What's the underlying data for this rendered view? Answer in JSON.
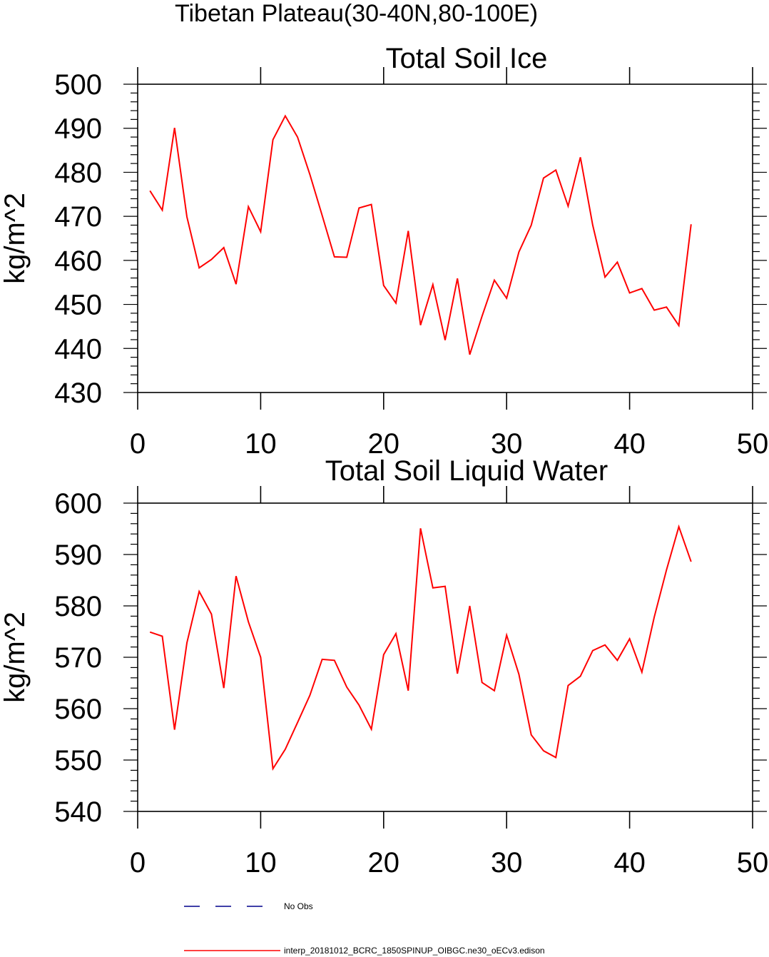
{
  "suptitle": "Tibetan Plateau(30-40N,80-100E)",
  "colors": {
    "series": "#ff0000",
    "obs": "#00008b",
    "axis": "#000000"
  },
  "chart_data": [
    {
      "type": "line",
      "title": "Total Soil Ice",
      "xlabel": "",
      "ylabel": "kg/m^2",
      "xlim": [
        0,
        50
      ],
      "ylim": [
        430,
        500
      ],
      "xticks": [
        0,
        10,
        20,
        30,
        40,
        50
      ],
      "yticks": [
        430,
        440,
        450,
        460,
        470,
        480,
        490,
        500
      ],
      "series": [
        {
          "name": "interp_20181012_BCRC_1850SPINUP_OIBGC.ne30_oECv3.edison",
          "x": [
            1,
            2,
            3,
            4,
            5,
            6,
            7,
            8,
            9,
            10,
            11,
            12,
            13,
            14,
            15,
            16,
            17,
            18,
            19,
            20,
            21,
            22,
            23,
            24,
            25,
            26,
            27,
            28,
            29,
            30,
            31,
            32,
            33,
            34,
            35,
            36,
            37,
            38,
            39,
            40,
            41,
            42,
            43,
            44,
            45
          ],
          "values": [
            475.8,
            471.4,
            490.1,
            469.9,
            458.3,
            460.2,
            462.9,
            454.6,
            472.2,
            466.5,
            487.4,
            492.8,
            488.0,
            479.5,
            470.2,
            460.8,
            460.7,
            471.9,
            472.7,
            454.3,
            450.3,
            466.7,
            445.3,
            454.5,
            441.9,
            455.9,
            438.6,
            447.3,
            455.5,
            451.4,
            461.9,
            468.0,
            478.7,
            480.5,
            472.3,
            483.4,
            468.0,
            456.2,
            459.6,
            452.6,
            453.6,
            448.7,
            449.4,
            445.2,
            468.2
          ]
        }
      ]
    },
    {
      "type": "line",
      "title": "Total Soil Liquid Water",
      "xlabel": "",
      "ylabel": "kg/m^2",
      "xlim": [
        0,
        50
      ],
      "ylim": [
        540,
        600
      ],
      "xticks": [
        0,
        10,
        20,
        30,
        40,
        50
      ],
      "yticks": [
        540,
        550,
        560,
        570,
        580,
        590,
        600
      ],
      "series": [
        {
          "name": "interp_20181012_BCRC_1850SPINUP_OIBGC.ne30_oECv3.edison",
          "x": [
            1,
            2,
            3,
            4,
            5,
            6,
            7,
            8,
            9,
            10,
            11,
            12,
            13,
            14,
            15,
            16,
            17,
            18,
            19,
            20,
            21,
            22,
            23,
            24,
            25,
            26,
            27,
            28,
            29,
            30,
            31,
            32,
            33,
            34,
            35,
            36,
            37,
            38,
            39,
            40,
            41,
            42,
            43,
            44,
            45
          ],
          "values": [
            574.9,
            574.1,
            555.9,
            572.8,
            582.8,
            578.4,
            564.0,
            585.8,
            576.9,
            570.0,
            548.3,
            552.1,
            557.3,
            562.6,
            569.6,
            569.4,
            564.2,
            560.7,
            556.0,
            570.5,
            574.6,
            563.5,
            595.1,
            583.5,
            583.8,
            566.8,
            580.0,
            565.1,
            563.5,
            574.3,
            566.7,
            554.9,
            551.8,
            550.5,
            564.5,
            566.3,
            571.3,
            572.4,
            569.4,
            573.6,
            567.1,
            577.8,
            587.0,
            595.4,
            588.6
          ]
        }
      ]
    }
  ],
  "legend": {
    "obs_label": "No Obs",
    "model_label": "interp_20181012_BCRC_1850SPINUP_OIBGC.ne30_oECv3.edison"
  }
}
